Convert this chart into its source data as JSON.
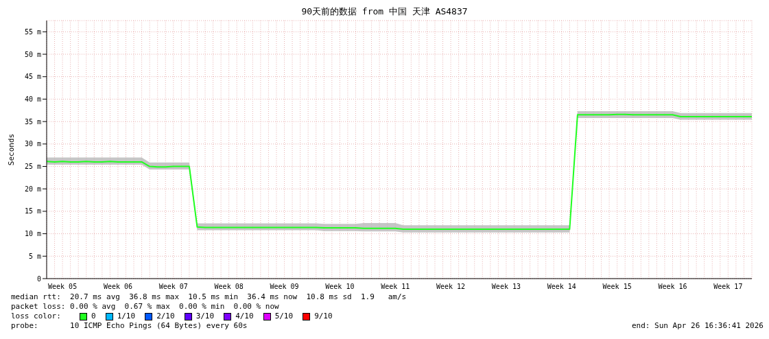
{
  "chart_data": {
    "type": "line",
    "title": "90天前的数据 from 中国 天津 AS4837",
    "ylabel": "Seconds",
    "categories": [
      null,
      null,
      "Week 05",
      null,
      null,
      null,
      null,
      null,
      null,
      "Week 06",
      null,
      null,
      null,
      null,
      null,
      null,
      "Week 07",
      null,
      null,
      null,
      null,
      null,
      null,
      "Week 08",
      null,
      null,
      null,
      null,
      null,
      null,
      "Week 09",
      null,
      null,
      null,
      null,
      null,
      null,
      "Week 10",
      null,
      null,
      null,
      null,
      null,
      null,
      "Week 11",
      null,
      null,
      null,
      null,
      null,
      null,
      "Week 12",
      null,
      null,
      null,
      null,
      null,
      null,
      "Week 13",
      null,
      null,
      null,
      null,
      null,
      null,
      "Week 14",
      null,
      null,
      null,
      null,
      null,
      null,
      "Week 15",
      null,
      null,
      null,
      null,
      null,
      null,
      "Week 16",
      null,
      null,
      null,
      null,
      null,
      null,
      "Week 17",
      null,
      null,
      null
    ],
    "series": [
      {
        "name": "0",
        "color": "#20ff20",
        "values": [
          26.1,
          26.0,
          26.1,
          26.0,
          26.0,
          26.1,
          26.0,
          26.0,
          26.1,
          26.0,
          26.0,
          26.0,
          26.0,
          25.0,
          24.9,
          24.9,
          25.0,
          25.0,
          25.0,
          11.5,
          11.4,
          11.4,
          11.4,
          11.4,
          11.4,
          11.4,
          11.4,
          11.4,
          11.4,
          11.4,
          11.4,
          11.4,
          11.4,
          11.4,
          11.4,
          11.3,
          11.3,
          11.3,
          11.3,
          11.3,
          11.2,
          11.2,
          11.2,
          11.2,
          11.2,
          11.0,
          11.0,
          11.0,
          11.0,
          11.0,
          11.0,
          11.0,
          11.0,
          11.0,
          11.0,
          11.0,
          11.0,
          11.0,
          11.0,
          11.0,
          11.0,
          11.0,
          11.0,
          11.0,
          11.0,
          11.0,
          11.0,
          36.5,
          36.5,
          36.5,
          36.5,
          36.5,
          36.6,
          36.6,
          36.5,
          36.5,
          36.5,
          36.5,
          36.5,
          36.5,
          36.1,
          36.1,
          36.1,
          36.1,
          36.1,
          36.1,
          36.1,
          36.1,
          36.1,
          36.1
        ],
        "lower": [
          25.4,
          25.4,
          25.4,
          25.4,
          25.4,
          25.4,
          25.4,
          25.4,
          25.4,
          25.4,
          25.4,
          25.4,
          25.4,
          24.3,
          24.3,
          24.3,
          24.3,
          24.3,
          24.3,
          10.8,
          10.8,
          10.8,
          10.8,
          10.8,
          10.8,
          10.8,
          10.8,
          10.8,
          10.8,
          10.8,
          10.8,
          10.8,
          10.8,
          10.8,
          10.8,
          10.6,
          10.6,
          10.6,
          10.6,
          10.6,
          10.5,
          10.5,
          10.5,
          10.5,
          10.5,
          10.3,
          10.3,
          10.3,
          10.3,
          10.3,
          10.3,
          10.3,
          10.3,
          10.3,
          10.3,
          10.3,
          10.3,
          10.3,
          10.3,
          10.3,
          10.3,
          10.3,
          10.3,
          10.3,
          10.3,
          10.3,
          10.3,
          35.8,
          35.8,
          35.8,
          35.8,
          35.8,
          35.8,
          35.8,
          35.8,
          35.8,
          35.8,
          35.8,
          35.8,
          35.8,
          35.4,
          35.4,
          35.4,
          35.4,
          35.4,
          35.4,
          35.4,
          35.4,
          35.4,
          35.4
        ],
        "upper": [
          27.0,
          27.0,
          27.0,
          27.0,
          27.0,
          27.0,
          27.0,
          27.0,
          27.0,
          27.0,
          27.0,
          27.0,
          27.0,
          25.9,
          25.9,
          25.9,
          25.9,
          25.9,
          25.9,
          12.3,
          12.3,
          12.3,
          12.3,
          12.3,
          12.3,
          12.3,
          12.3,
          12.3,
          12.3,
          12.3,
          12.3,
          12.3,
          12.3,
          12.3,
          12.3,
          12.2,
          12.2,
          12.2,
          12.2,
          12.2,
          12.4,
          12.4,
          12.4,
          12.4,
          12.4,
          11.9,
          11.9,
          11.9,
          11.9,
          11.9,
          11.9,
          11.9,
          11.9,
          11.9,
          11.9,
          11.9,
          11.9,
          11.9,
          11.9,
          11.9,
          11.9,
          11.9,
          11.9,
          11.9,
          11.9,
          11.9,
          11.9,
          37.3,
          37.3,
          37.3,
          37.3,
          37.3,
          37.3,
          37.3,
          37.3,
          37.3,
          37.3,
          37.3,
          37.3,
          37.3,
          36.9,
          36.9,
          36.9,
          36.9,
          36.9,
          36.9,
          36.9,
          36.9,
          36.9,
          36.9
        ]
      },
      {
        "name": "1/10",
        "color": "#00b8ff",
        "values": [
          null,
          null,
          null,
          null,
          null,
          null,
          null,
          null,
          null,
          null,
          null,
          null,
          null,
          null,
          null,
          null,
          null,
          null,
          null,
          null,
          null,
          null,
          null,
          null,
          null,
          null,
          null,
          null,
          null,
          null,
          null,
          null,
          null,
          null,
          null,
          null,
          null,
          null,
          null,
          null,
          null,
          null,
          null,
          null,
          null,
          null,
          null,
          null,
          null,
          null,
          null,
          null,
          null,
          null,
          null,
          null,
          null,
          null,
          null,
          null,
          null,
          null,
          null,
          null,
          null,
          null,
          null,
          null,
          null,
          null,
          null,
          null,
          null,
          null,
          null,
          null,
          null,
          null,
          null,
          null,
          null,
          null,
          null,
          null,
          null,
          null,
          null,
          null,
          null,
          null
        ]
      },
      {
        "name": "2/10",
        "color": "#0059ff",
        "values": [
          null,
          null,
          null,
          null,
          null,
          null,
          null,
          null,
          null,
          null,
          null,
          null,
          null,
          null,
          null,
          null,
          null,
          null,
          null,
          null,
          null,
          null,
          null,
          null,
          null,
          null,
          null,
          null,
          null,
          null,
          null,
          null,
          null,
          null,
          null,
          null,
          null,
          null,
          null,
          null,
          null,
          null,
          null,
          null,
          null,
          null,
          null,
          null,
          null,
          null,
          null,
          null,
          null,
          null,
          null,
          null,
          null,
          null,
          null,
          null,
          null,
          null,
          null,
          null,
          null,
          null,
          null,
          null,
          null,
          null,
          null,
          null,
          null,
          null,
          null,
          null,
          null,
          null,
          null,
          null,
          null,
          null,
          null,
          null,
          null,
          null,
          null,
          null,
          null,
          null
        ]
      },
      {
        "name": "3/10",
        "color": "#5e00ff",
        "values": [
          null,
          null,
          null,
          null,
          null,
          null,
          null,
          null,
          null,
          null,
          null,
          null,
          null,
          null,
          null,
          null,
          null,
          null,
          null,
          null,
          null,
          null,
          null,
          null,
          null,
          null,
          null,
          null,
          null,
          null,
          null,
          null,
          null,
          null,
          null,
          null,
          null,
          null,
          null,
          null,
          null,
          null,
          null,
          null,
          null,
          null,
          null,
          null,
          null,
          null,
          null,
          null,
          null,
          null,
          null,
          null,
          null,
          null,
          null,
          null,
          null,
          null,
          null,
          null,
          null,
          null,
          null,
          null,
          null,
          null,
          null,
          null,
          null,
          null,
          null,
          null,
          null,
          null,
          null,
          null,
          null,
          null,
          null,
          null,
          null,
          null,
          null,
          null,
          null,
          null
        ]
      },
      {
        "name": "4/10",
        "color": "#7e00ff",
        "values": [
          null,
          null,
          null,
          null,
          null,
          null,
          null,
          null,
          null,
          null,
          null,
          null,
          null,
          null,
          null,
          null,
          null,
          null,
          null,
          null,
          null,
          null,
          null,
          null,
          null,
          null,
          null,
          null,
          null,
          null,
          null,
          null,
          null,
          null,
          null,
          null,
          null,
          null,
          null,
          null,
          null,
          null,
          null,
          null,
          null,
          null,
          null,
          null,
          null,
          null,
          null,
          null,
          null,
          null,
          null,
          null,
          null,
          null,
          null,
          null,
          null,
          null,
          null,
          null,
          null,
          null,
          null,
          null,
          null,
          null,
          null,
          null,
          null,
          null,
          null,
          null,
          null,
          null,
          null,
          null,
          null,
          null,
          null,
          null,
          null,
          null,
          null,
          null,
          null,
          null
        ]
      },
      {
        "name": "5/10",
        "color": "#dd00ff",
        "values": [
          null,
          null,
          null,
          null,
          null,
          null,
          null,
          null,
          null,
          null,
          null,
          null,
          null,
          null,
          null,
          null,
          null,
          null,
          null,
          null,
          null,
          null,
          null,
          null,
          null,
          null,
          null,
          null,
          null,
          null,
          null,
          null,
          null,
          null,
          null,
          null,
          null,
          null,
          null,
          null,
          null,
          null,
          null,
          null,
          null,
          null,
          null,
          null,
          null,
          null,
          null,
          null,
          null,
          null,
          null,
          null,
          null,
          null,
          null,
          null,
          null,
          null,
          null,
          null,
          null,
          null,
          null,
          null,
          null,
          null,
          null,
          null,
          null,
          null,
          null,
          null,
          null,
          null,
          null,
          null,
          null,
          null,
          null,
          null,
          null,
          null,
          null,
          null,
          null,
          null
        ]
      },
      {
        "name": "9/10",
        "color": "#ff0000",
        "values": [
          null,
          null,
          null,
          null,
          null,
          null,
          null,
          null,
          null,
          null,
          null,
          null,
          null,
          null,
          null,
          null,
          null,
          null,
          null,
          null,
          null,
          null,
          null,
          null,
          null,
          null,
          null,
          null,
          null,
          null,
          null,
          null,
          null,
          null,
          null,
          null,
          null,
          null,
          null,
          null,
          null,
          null,
          null,
          null,
          null,
          null,
          null,
          null,
          null,
          null,
          null,
          null,
          null,
          null,
          null,
          null,
          null,
          null,
          null,
          null,
          null,
          null,
          null,
          null,
          null,
          null,
          null,
          null,
          null,
          null,
          null,
          null,
          null,
          null,
          null,
          null,
          null,
          null,
          null,
          null,
          null,
          null,
          null,
          null,
          null,
          null,
          null,
          null,
          null,
          null
        ]
      }
    ],
    "legend": "bottom",
    "legend_title": "loss color:",
    "ylim": [
      0,
      57.5
    ],
    "yticks": [
      0,
      {
        "value": 5,
        "label": "5 m"
      },
      {
        "value": 10,
        "label": "10 m"
      },
      {
        "value": 15,
        "label": "15 m"
      },
      {
        "value": 20,
        "label": "20 m"
      },
      {
        "value": 25,
        "label": "25 m"
      },
      {
        "value": 30,
        "label": "30 m"
      },
      {
        "value": 35,
        "label": "35 m"
      },
      {
        "value": 40,
        "label": "40 m"
      },
      {
        "value": 45,
        "label": "45 m"
      },
      {
        "value": 50,
        "label": "50 m"
      },
      {
        "value": 55,
        "label": "55 m"
      }
    ],
    "grid": true,
    "marker": "none",
    "line_style": "solid",
    "annotations": [
      "median rtt:  20.7 ms avg  36.8 ms max  10.5 ms min  36.4 ms now  10.8 ms sd  1.9   am/s",
      "packet loss: 0.00 % avg  0.67 % max  0.00 % min  0.00 % now",
      "probe:       10 ICMP Echo Pings (64 Bytes) every 60s",
      "end: Sun Apr 26 16:36:41 2026"
    ]
  }
}
